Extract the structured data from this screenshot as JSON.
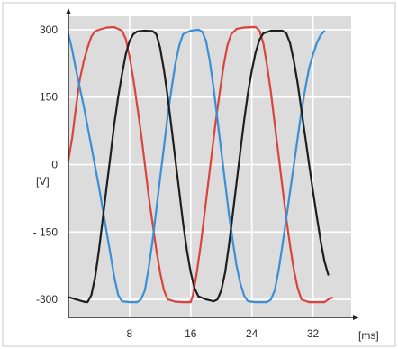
{
  "chart_data": {
    "type": "line",
    "title": "",
    "xlabel": "[ms]",
    "ylabel": "[V]",
    "xlim": [
      0,
      37
    ],
    "ylim": [
      -340,
      330
    ],
    "x_ticks": [
      8,
      16,
      24,
      32
    ],
    "y_ticks": [
      300,
      150,
      0,
      -150,
      -300
    ],
    "x_tick_labels": [
      "8",
      "16",
      "24",
      "32"
    ],
    "y_tick_labels": [
      "300",
      "150",
      "0",
      "- 150",
      "-300"
    ],
    "grid": true,
    "plot_background": "#dcdcdc",
    "series": [
      {
        "color": "#d9453d",
        "points": [
          [
            0,
            10
          ],
          [
            0.5,
            60
          ],
          [
            1,
            130
          ],
          [
            1.5,
            190
          ],
          [
            2,
            230
          ],
          [
            2.5,
            260
          ],
          [
            3,
            285
          ],
          [
            3.5,
            297
          ],
          [
            4,
            300
          ],
          [
            5,
            305
          ],
          [
            6,
            306
          ],
          [
            7,
            298
          ],
          [
            7.5,
            280
          ],
          [
            8,
            240
          ],
          [
            8.5,
            190
          ],
          [
            9,
            130
          ],
          [
            9.5,
            70
          ],
          [
            10,
            0
          ],
          [
            10.5,
            -70
          ],
          [
            11,
            -130
          ],
          [
            11.5,
            -190
          ],
          [
            12,
            -240
          ],
          [
            12.5,
            -280
          ],
          [
            13,
            -300
          ],
          [
            14,
            -305
          ],
          [
            15,
            -306
          ],
          [
            16,
            -306
          ],
          [
            16.3,
            -290
          ],
          [
            16.8,
            -240
          ],
          [
            17.3,
            -180
          ],
          [
            17.8,
            -110
          ],
          [
            18.3,
            -40
          ],
          [
            18.8,
            30
          ],
          [
            19.3,
            100
          ],
          [
            19.8,
            160
          ],
          [
            20.3,
            220
          ],
          [
            20.8,
            265
          ],
          [
            21.3,
            290
          ],
          [
            22,
            302
          ],
          [
            23,
            305
          ],
          [
            24,
            306
          ],
          [
            24.5,
            306
          ],
          [
            25,
            298
          ],
          [
            25.5,
            270
          ],
          [
            26,
            220
          ],
          [
            26.5,
            160
          ],
          [
            27,
            90
          ],
          [
            27.5,
            20
          ],
          [
            28,
            -50
          ],
          [
            28.5,
            -120
          ],
          [
            29,
            -180
          ],
          [
            29.5,
            -235
          ],
          [
            30,
            -275
          ],
          [
            30.5,
            -300
          ],
          [
            31.5,
            -306
          ],
          [
            32.5,
            -306
          ],
          [
            33.5,
            -306
          ],
          [
            34,
            -300
          ],
          [
            34.5,
            -296
          ]
        ]
      },
      {
        "color": "#3a8fd6",
        "points": [
          [
            0,
            290
          ],
          [
            0.5,
            255
          ],
          [
            1,
            210
          ],
          [
            1.5,
            170
          ],
          [
            2,
            130
          ],
          [
            2.5,
            85
          ],
          [
            3,
            40
          ],
          [
            3.5,
            -5
          ],
          [
            4,
            -50
          ],
          [
            4.5,
            -100
          ],
          [
            5,
            -150
          ],
          [
            5.5,
            -200
          ],
          [
            6,
            -250
          ],
          [
            6.5,
            -290
          ],
          [
            7,
            -304
          ],
          [
            8,
            -306
          ],
          [
            9,
            -306
          ],
          [
            9.5,
            -300
          ],
          [
            10,
            -280
          ],
          [
            10.5,
            -230
          ],
          [
            11,
            -170
          ],
          [
            11.5,
            -100
          ],
          [
            12,
            -30
          ],
          [
            12.5,
            40
          ],
          [
            13,
            110
          ],
          [
            13.5,
            170
          ],
          [
            14,
            225
          ],
          [
            14.5,
            265
          ],
          [
            15,
            290
          ],
          [
            16,
            298
          ],
          [
            17,
            300
          ],
          [
            17.5,
            296
          ],
          [
            18,
            275
          ],
          [
            18.5,
            230
          ],
          [
            19,
            170
          ],
          [
            19.5,
            100
          ],
          [
            20,
            30
          ],
          [
            20.5,
            -40
          ],
          [
            21,
            -110
          ],
          [
            21.5,
            -170
          ],
          [
            22,
            -225
          ],
          [
            22.5,
            -265
          ],
          [
            23,
            -292
          ],
          [
            23.5,
            -304
          ],
          [
            24.5,
            -306
          ],
          [
            26,
            -306
          ],
          [
            26.5,
            -300
          ],
          [
            27,
            -280
          ],
          [
            27.5,
            -235
          ],
          [
            28,
            -180
          ],
          [
            28.5,
            -120
          ],
          [
            29,
            -60
          ],
          [
            29.5,
            0
          ],
          [
            30,
            60
          ],
          [
            30.5,
            120
          ],
          [
            31,
            170
          ],
          [
            31.5,
            215
          ],
          [
            32,
            245
          ],
          [
            32.5,
            270
          ],
          [
            33,
            288
          ],
          [
            33.5,
            297
          ]
        ]
      },
      {
        "color": "#1e1e1e",
        "points": [
          [
            0,
            -295
          ],
          [
            1,
            -300
          ],
          [
            2,
            -305
          ],
          [
            2.5,
            -306
          ],
          [
            3,
            -290
          ],
          [
            3.5,
            -250
          ],
          [
            4,
            -190
          ],
          [
            4.5,
            -120
          ],
          [
            5,
            -50
          ],
          [
            5.5,
            20
          ],
          [
            6,
            90
          ],
          [
            6.5,
            150
          ],
          [
            7,
            200
          ],
          [
            7.5,
            245
          ],
          [
            8,
            275
          ],
          [
            8.5,
            290
          ],
          [
            9,
            296
          ],
          [
            10,
            298
          ],
          [
            11,
            297
          ],
          [
            11.5,
            290
          ],
          [
            12,
            260
          ],
          [
            12.5,
            210
          ],
          [
            13,
            150
          ],
          [
            13.5,
            80
          ],
          [
            14,
            10
          ],
          [
            14.5,
            -60
          ],
          [
            15,
            -130
          ],
          [
            15.5,
            -190
          ],
          [
            16,
            -240
          ],
          [
            16.5,
            -275
          ],
          [
            17,
            -293
          ],
          [
            18,
            -300
          ],
          [
            19,
            -304
          ],
          [
            19.5,
            -300
          ],
          [
            20,
            -280
          ],
          [
            20.5,
            -240
          ],
          [
            21,
            -180
          ],
          [
            21.5,
            -110
          ],
          [
            22,
            -40
          ],
          [
            22.5,
            30
          ],
          [
            23,
            100
          ],
          [
            23.5,
            160
          ],
          [
            24,
            210
          ],
          [
            24.5,
            250
          ],
          [
            25,
            278
          ],
          [
            25.5,
            292
          ],
          [
            26.5,
            298
          ],
          [
            28,
            298
          ],
          [
            28.5,
            292
          ],
          [
            29,
            270
          ],
          [
            29.5,
            230
          ],
          [
            30,
            180
          ],
          [
            30.5,
            120
          ],
          [
            31,
            60
          ],
          [
            31.5,
            0
          ],
          [
            32,
            -60
          ],
          [
            32.5,
            -115
          ],
          [
            33,
            -170
          ],
          [
            33.5,
            -215
          ],
          [
            34,
            -245
          ]
        ]
      }
    ]
  }
}
